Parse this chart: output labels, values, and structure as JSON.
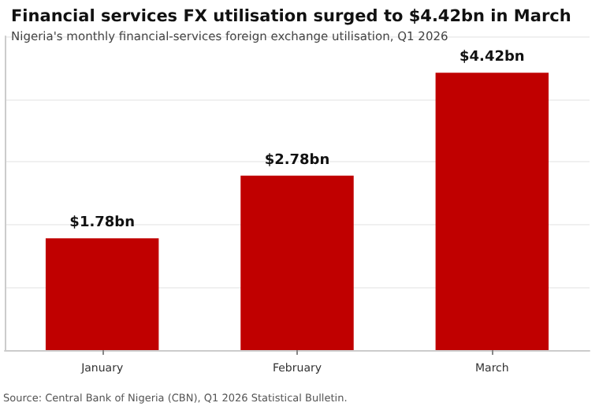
{
  "chart_data": {
    "type": "bar",
    "title": "Financial services FX utilisation surged to $4.42bn in March",
    "subtitle": "Nigeria's monthly financial-services foreign exchange utilisation, Q1 2026",
    "categories": [
      "January",
      "February",
      "March"
    ],
    "values": [
      1.78,
      2.78,
      4.42
    ],
    "color": "#c00000",
    "value_labels": [
      "$1.78bn",
      "$2.78bn",
      "$4.42bn"
    ],
    "ylim": [
      0,
      5
    ],
    "yticks": [
      {
        "value": 0,
        "label": null
      },
      {
        "value": 1,
        "label": null
      },
      {
        "value": 2,
        "label": null
      },
      {
        "value": 3,
        "label": null
      },
      {
        "value": 4,
        "label": null
      },
      {
        "value": 5,
        "label": null
      }
    ],
    "tick_labels": "x",
    "grid": "y",
    "annotations": [
      "Source: Central Bank of Nigeria (CBN), Q1 2026 Statistical Bulletin."
    ]
  }
}
